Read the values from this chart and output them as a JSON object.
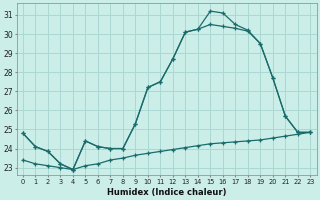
{
  "xlabel": "Humidex (Indice chaleur)",
  "bg_color": "#cceee8",
  "grid_color": "#aad8d2",
  "line_color": "#1a6b6b",
  "xlim": [
    -0.5,
    23.5
  ],
  "ylim": [
    22.6,
    31.6
  ],
  "xticks": [
    0,
    1,
    2,
    3,
    4,
    5,
    6,
    7,
    8,
    9,
    10,
    11,
    12,
    13,
    14,
    15,
    16,
    17,
    18,
    19,
    20,
    21,
    22,
    23
  ],
  "yticks": [
    23,
    24,
    25,
    26,
    27,
    28,
    29,
    30,
    31
  ],
  "series1_x": [
    0,
    1,
    2,
    3,
    4,
    5,
    6,
    7,
    8,
    9,
    10,
    11,
    12,
    13,
    14,
    15,
    16,
    17,
    18,
    19,
    20,
    21,
    22,
    23
  ],
  "series1_y": [
    24.8,
    24.1,
    23.85,
    23.2,
    22.9,
    24.4,
    24.1,
    24.0,
    24.0,
    25.3,
    27.2,
    27.5,
    28.7,
    30.1,
    30.25,
    31.2,
    31.1,
    30.5,
    30.2,
    29.5,
    27.7,
    25.7,
    24.85,
    24.85
  ],
  "series2_x": [
    0,
    1,
    2,
    3,
    4,
    5,
    6,
    7,
    8,
    9,
    10,
    11,
    12,
    13,
    14,
    15,
    16,
    17,
    18,
    19,
    20,
    21,
    22,
    23
  ],
  "series2_y": [
    24.8,
    24.1,
    23.85,
    23.2,
    22.9,
    24.4,
    24.1,
    24.0,
    24.0,
    25.3,
    27.2,
    27.5,
    28.7,
    30.1,
    30.25,
    30.5,
    30.4,
    30.3,
    30.15,
    29.5,
    27.7,
    25.7,
    24.85,
    24.85
  ],
  "series3_x": [
    0,
    1,
    2,
    3,
    4,
    5,
    6,
    7,
    8,
    9,
    10,
    11,
    12,
    13,
    14,
    15,
    16,
    17,
    18,
    19,
    20,
    21,
    22,
    23
  ],
  "series3_y": [
    23.4,
    23.2,
    23.1,
    23.0,
    22.9,
    23.1,
    23.2,
    23.4,
    23.5,
    23.65,
    23.75,
    23.85,
    23.95,
    24.05,
    24.15,
    24.25,
    24.3,
    24.35,
    24.4,
    24.45,
    24.55,
    24.65,
    24.75,
    24.85
  ]
}
